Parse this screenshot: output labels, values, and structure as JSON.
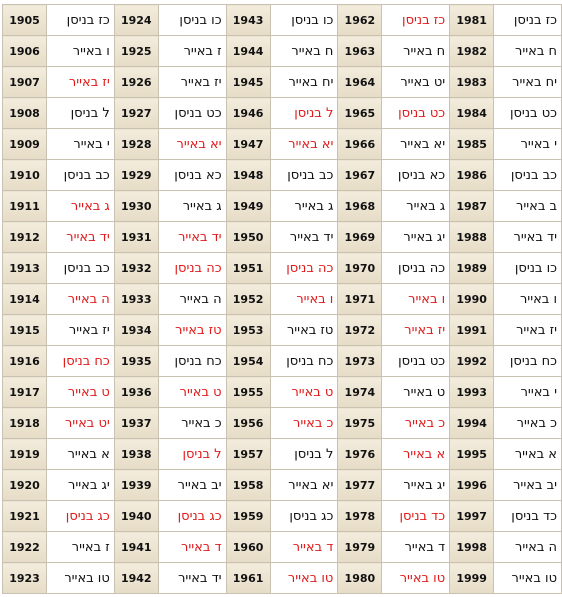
{
  "table": {
    "rows": [
      [
        {
          "year": 1905,
          "date": "כז בניסן",
          "red": false
        },
        {
          "year": 1924,
          "date": "כו בניסן",
          "red": false
        },
        {
          "year": 1943,
          "date": "כו בניסן",
          "red": false
        },
        {
          "year": 1962,
          "date": "כז בניסן",
          "red": true
        },
        {
          "year": 1981,
          "date": "כז בניסן",
          "red": false
        }
      ],
      [
        {
          "year": 1906,
          "date": "ו באייר",
          "red": false
        },
        {
          "year": 1925,
          "date": "ז באייר",
          "red": false
        },
        {
          "year": 1944,
          "date": "ח באייר",
          "red": false
        },
        {
          "year": 1963,
          "date": "ח באייר",
          "red": false
        },
        {
          "year": 1982,
          "date": "ח באייר",
          "red": false
        }
      ],
      [
        {
          "year": 1907,
          "date": "יז באייר",
          "red": true
        },
        {
          "year": 1926,
          "date": "יז באייר",
          "red": false
        },
        {
          "year": 1945,
          "date": "יח באייר",
          "red": false
        },
        {
          "year": 1964,
          "date": "יט באייר",
          "red": false
        },
        {
          "year": 1983,
          "date": "יח באייר",
          "red": false
        }
      ],
      [
        {
          "year": 1908,
          "date": "ל בניסן",
          "red": false
        },
        {
          "year": 1927,
          "date": "כט בניסן",
          "red": false
        },
        {
          "year": 1946,
          "date": "ל בניסן",
          "red": true
        },
        {
          "year": 1965,
          "date": "כט בניסן",
          "red": true
        },
        {
          "year": 1984,
          "date": "כט בניסן",
          "red": false
        }
      ],
      [
        {
          "year": 1909,
          "date": "י באייר",
          "red": false
        },
        {
          "year": 1928,
          "date": "יא באייר",
          "red": true
        },
        {
          "year": 1947,
          "date": "יא באייר",
          "red": true
        },
        {
          "year": 1966,
          "date": "יא באייר",
          "red": false
        },
        {
          "year": 1985,
          "date": "י באייר",
          "red": false
        }
      ],
      [
        {
          "year": 1910,
          "date": "כב בניסן",
          "red": false
        },
        {
          "year": 1929,
          "date": "כא בניסן",
          "red": false
        },
        {
          "year": 1948,
          "date": "כב בניסן",
          "red": false
        },
        {
          "year": 1967,
          "date": "כא בניסן",
          "red": false
        },
        {
          "year": 1986,
          "date": "כב בניסן",
          "red": false
        }
      ],
      [
        {
          "year": 1911,
          "date": "ג באייר",
          "red": true
        },
        {
          "year": 1930,
          "date": "ג באייר",
          "red": false
        },
        {
          "year": 1949,
          "date": "ג באייר",
          "red": false
        },
        {
          "year": 1968,
          "date": "ג באייר",
          "red": false
        },
        {
          "year": 1987,
          "date": "ב באייר",
          "red": false
        }
      ],
      [
        {
          "year": 1912,
          "date": "יד באייר",
          "red": true
        },
        {
          "year": 1931,
          "date": "יד באייר",
          "red": true
        },
        {
          "year": 1950,
          "date": "יד באייר",
          "red": false
        },
        {
          "year": 1969,
          "date": "יג באייר",
          "red": false
        },
        {
          "year": 1988,
          "date": "יד באייר",
          "red": false
        }
      ],
      [
        {
          "year": 1913,
          "date": "כב בניסן",
          "red": false
        },
        {
          "year": 1932,
          "date": "כה בניסן",
          "red": true
        },
        {
          "year": 1951,
          "date": "כה בניסן",
          "red": true
        },
        {
          "year": 1970,
          "date": "כה בניסן",
          "red": false
        },
        {
          "year": 1989,
          "date": "כו בניסן",
          "red": false
        }
      ],
      [
        {
          "year": 1914,
          "date": "ה באייר",
          "red": true
        },
        {
          "year": 1933,
          "date": "ה באייר",
          "red": false
        },
        {
          "year": 1952,
          "date": "ו באייר",
          "red": true
        },
        {
          "year": 1971,
          "date": "ו באייר",
          "red": true
        },
        {
          "year": 1990,
          "date": "ו באייר",
          "red": false
        }
      ],
      [
        {
          "year": 1915,
          "date": "יז באייר",
          "red": false
        },
        {
          "year": 1934,
          "date": "טז באייר",
          "red": true
        },
        {
          "year": 1953,
          "date": "טז באייר",
          "red": false
        },
        {
          "year": 1972,
          "date": "יז באייר",
          "red": true
        },
        {
          "year": 1991,
          "date": "יז באייר",
          "red": false
        }
      ],
      [
        {
          "year": 1916,
          "date": "כח בניסן",
          "red": true
        },
        {
          "year": 1935,
          "date": "כח בניסן",
          "red": false
        },
        {
          "year": 1954,
          "date": "כח בניסן",
          "red": false
        },
        {
          "year": 1973,
          "date": "כט בניסן",
          "red": false
        },
        {
          "year": 1992,
          "date": "כח בניסן",
          "red": false
        }
      ],
      [
        {
          "year": 1917,
          "date": "ט באייר",
          "red": true
        },
        {
          "year": 1936,
          "date": "ט באייר",
          "red": true
        },
        {
          "year": 1955,
          "date": "ט באייר",
          "red": true
        },
        {
          "year": 1974,
          "date": "ט באייר",
          "red": false
        },
        {
          "year": 1993,
          "date": "י באייר",
          "red": false
        }
      ],
      [
        {
          "year": 1918,
          "date": "יט באייר",
          "red": true
        },
        {
          "year": 1937,
          "date": "כ באייר",
          "red": false
        },
        {
          "year": 1956,
          "date": "כ באייר",
          "red": true
        },
        {
          "year": 1975,
          "date": "כ באייר",
          "red": true
        },
        {
          "year": 1994,
          "date": "כ באייר",
          "red": false
        }
      ],
      [
        {
          "year": 1919,
          "date": "א באייר",
          "red": false
        },
        {
          "year": 1938,
          "date": "ל בניסן",
          "red": true
        },
        {
          "year": 1957,
          "date": "ל בניסן",
          "red": false
        },
        {
          "year": 1976,
          "date": "א באייר",
          "red": true
        },
        {
          "year": 1995,
          "date": "א באייר",
          "red": false
        }
      ],
      [
        {
          "year": 1920,
          "date": "יג באייר",
          "red": false
        },
        {
          "year": 1939,
          "date": "יב באייר",
          "red": false
        },
        {
          "year": 1958,
          "date": "יא באייר",
          "red": false
        },
        {
          "year": 1977,
          "date": "יג באייר",
          "red": false
        },
        {
          "year": 1996,
          "date": "יב באייר",
          "red": false
        }
      ],
      [
        {
          "year": 1921,
          "date": "כג בניסן",
          "red": true
        },
        {
          "year": 1940,
          "date": "כג בניסן",
          "red": true
        },
        {
          "year": 1959,
          "date": "כג בניסן",
          "red": false
        },
        {
          "year": 1978,
          "date": "כד בניסן",
          "red": true
        },
        {
          "year": 1997,
          "date": "כד בניסן",
          "red": false
        }
      ],
      [
        {
          "year": 1922,
          "date": "ז באייר",
          "red": false
        },
        {
          "year": 1941,
          "date": "ד באייר",
          "red": true
        },
        {
          "year": 1960,
          "date": "ד באייר",
          "red": true
        },
        {
          "year": 1979,
          "date": "ד באייר",
          "red": false
        },
        {
          "year": 1998,
          "date": "ה באייר",
          "red": false
        }
      ],
      [
        {
          "year": 1923,
          "date": "טו באייר",
          "red": false
        },
        {
          "year": 1942,
          "date": "יד באייר",
          "red": false
        },
        {
          "year": 1961,
          "date": "טו באייר",
          "red": true
        },
        {
          "year": 1980,
          "date": "טו באייר",
          "red": true
        },
        {
          "year": 1999,
          "date": "טו באייר",
          "red": false
        }
      ]
    ]
  }
}
